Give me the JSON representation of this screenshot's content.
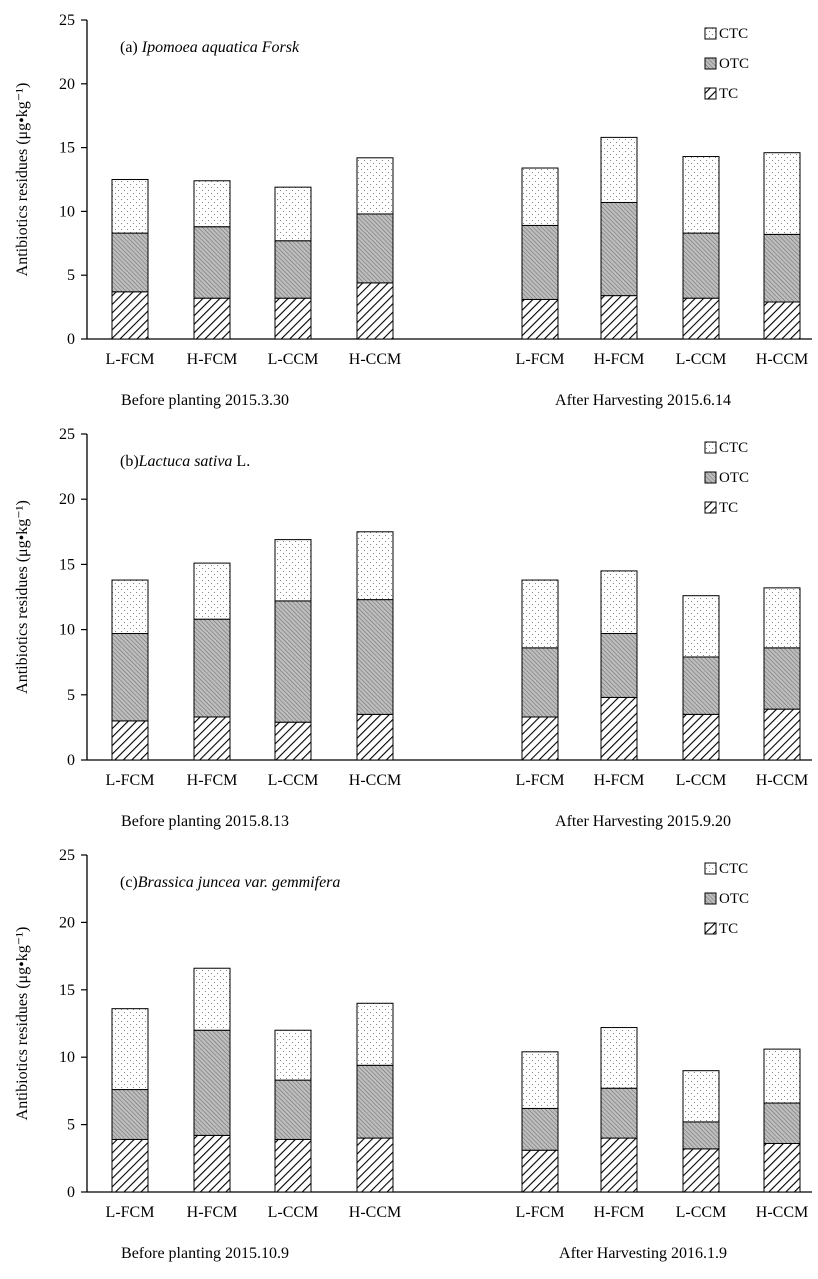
{
  "chart_data": [
    {
      "type": "bar",
      "stacked": true,
      "title_prefix": "(a) ",
      "title_species": "Ipomoea aquatica Forsk",
      "title_suffix": "",
      "ylabel": "Antibiotics residues (μg•kg⁻¹)",
      "ylim": [
        0,
        25
      ],
      "yticks": [
        "0",
        "5",
        "10",
        "15",
        "20",
        "25"
      ],
      "categories": [
        "L-FCM",
        "H-FCM",
        "L-CCM",
        "H-CCM",
        "L-FCM",
        "H-FCM",
        "L-CCM",
        "H-CCM"
      ],
      "groups": [
        "Before planting 2015.3.30",
        "After Harvesting 2015.6.14"
      ],
      "legend_position": "top-right",
      "legend": [
        "CTC",
        "OTC",
        "TC"
      ],
      "series": [
        {
          "name": "TC",
          "values": [
            3.7,
            3.2,
            3.2,
            4.4,
            3.1,
            3.4,
            3.2,
            2.9
          ]
        },
        {
          "name": "OTC",
          "values": [
            4.6,
            5.6,
            4.5,
            5.4,
            5.8,
            7.3,
            5.1,
            5.3
          ]
        },
        {
          "name": "CTC",
          "values": [
            4.2,
            3.6,
            4.2,
            4.4,
            4.5,
            5.1,
            6.0,
            6.4
          ]
        }
      ]
    },
    {
      "type": "bar",
      "stacked": true,
      "title_prefix": "(b)",
      "title_species": "Lactuca sativa",
      "title_suffix": " L.",
      "ylabel": "Antibiotics residues (μg•kg⁻¹)",
      "ylim": [
        0,
        25
      ],
      "yticks": [
        "0",
        "5",
        "10",
        "15",
        "20",
        "25"
      ],
      "categories": [
        "L-FCM",
        "H-FCM",
        "L-CCM",
        "H-CCM",
        "L-FCM",
        "H-FCM",
        "L-CCM",
        "H-CCM"
      ],
      "groups": [
        "Before planting 2015.8.13",
        "After Harvesting 2015.9.20"
      ],
      "legend_position": "top-right",
      "legend": [
        "CTC",
        "OTC",
        "TC"
      ],
      "series": [
        {
          "name": "TC",
          "values": [
            3.0,
            3.3,
            2.9,
            3.5,
            3.3,
            4.8,
            3.5,
            3.9
          ]
        },
        {
          "name": "OTC",
          "values": [
            6.7,
            7.5,
            9.3,
            8.8,
            5.3,
            4.9,
            4.4,
            4.7
          ]
        },
        {
          "name": "CTC",
          "values": [
            4.1,
            4.3,
            4.7,
            5.2,
            5.2,
            4.8,
            4.7,
            4.6
          ]
        }
      ]
    },
    {
      "type": "bar",
      "stacked": true,
      "title_prefix": "(c)",
      "title_species": "Brassica juncea var. gemmifera",
      "title_suffix": "",
      "ylabel": "Antibiotics residues (μg•kg⁻¹)",
      "ylim": [
        0,
        25
      ],
      "yticks": [
        "0",
        "5",
        "10",
        "15",
        "20",
        "25"
      ],
      "categories": [
        "L-FCM",
        "H-FCM",
        "L-CCM",
        "H-CCM",
        "L-FCM",
        "H-FCM",
        "L-CCM",
        "H-CCM"
      ],
      "groups": [
        "Before planting 2015.10.9",
        "After Harvesting 2016.1.9"
      ],
      "legend_position": "top-right",
      "legend": [
        "CTC",
        "OTC",
        "TC"
      ],
      "series": [
        {
          "name": "TC",
          "values": [
            3.9,
            4.2,
            3.9,
            4.0,
            3.1,
            4.0,
            3.2,
            3.6
          ]
        },
        {
          "name": "OTC",
          "values": [
            3.7,
            7.8,
            4.4,
            5.4,
            3.1,
            3.7,
            2.0,
            3.0
          ]
        },
        {
          "name": "CTC",
          "values": [
            6.0,
            4.6,
            3.7,
            4.6,
            4.2,
            4.5,
            3.8,
            4.0
          ]
        }
      ]
    }
  ]
}
